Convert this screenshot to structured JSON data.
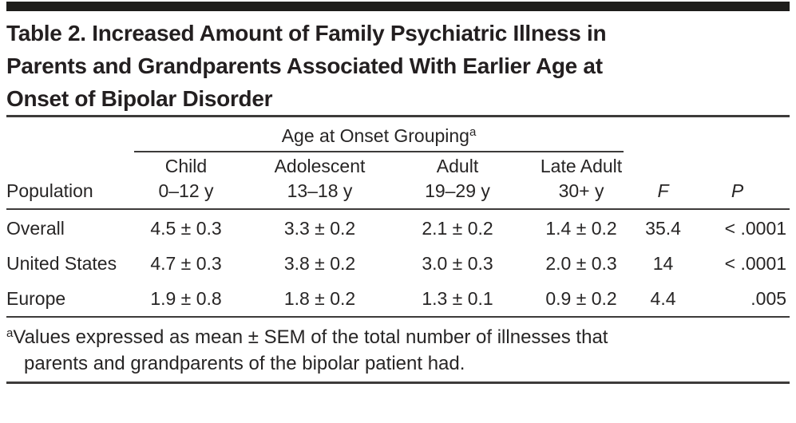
{
  "table": {
    "title_lines": [
      "Table 2. Increased Amount of Family Psychiatric Illness in",
      "Parents and Grandparents Associated With Earlier Age at",
      "Onset of Bipolar Disorder"
    ],
    "spanner": {
      "label": "Age at Onset Grouping",
      "superscript": "a"
    },
    "columns": {
      "population": "Population",
      "groups": [
        {
          "name": "Child",
          "range": "0–12 y"
        },
        {
          "name": "Adolescent",
          "range": "13–18 y"
        },
        {
          "name": "Adult",
          "range": "19–29 y"
        },
        {
          "name": "Late Adult",
          "range": "30+ y"
        }
      ],
      "f": "F",
      "p": "P"
    },
    "rows": [
      {
        "population": "Overall",
        "values": [
          "4.5 ± 0.3",
          "3.3 ± 0.2",
          "2.1 ± 0.2",
          "1.4 ± 0.2"
        ],
        "f": "35.4",
        "p": "< .0001"
      },
      {
        "population": "United States",
        "values": [
          "4.7 ± 0.3",
          "3.8 ± 0.2",
          "3.0 ± 0.3",
          "2.0 ± 0.3"
        ],
        "f": "14",
        "p": "< .0001"
      },
      {
        "population": "Europe",
        "values": [
          "1.9 ± 0.8",
          "1.8 ± 0.2",
          "1.3 ± 0.1",
          "0.9 ± 0.2"
        ],
        "f": "4.4",
        "p": ".005"
      }
    ],
    "footnote": {
      "marker": "a",
      "lines": [
        "Values expressed as mean ± SEM of the total number of illnesses that",
        "parents and grandparents of the bipolar patient had."
      ]
    },
    "colors": {
      "text": "#272525",
      "rule": "#3d3b3a",
      "top_bar": "#1e1d1b",
      "background": "#ffffff"
    }
  }
}
